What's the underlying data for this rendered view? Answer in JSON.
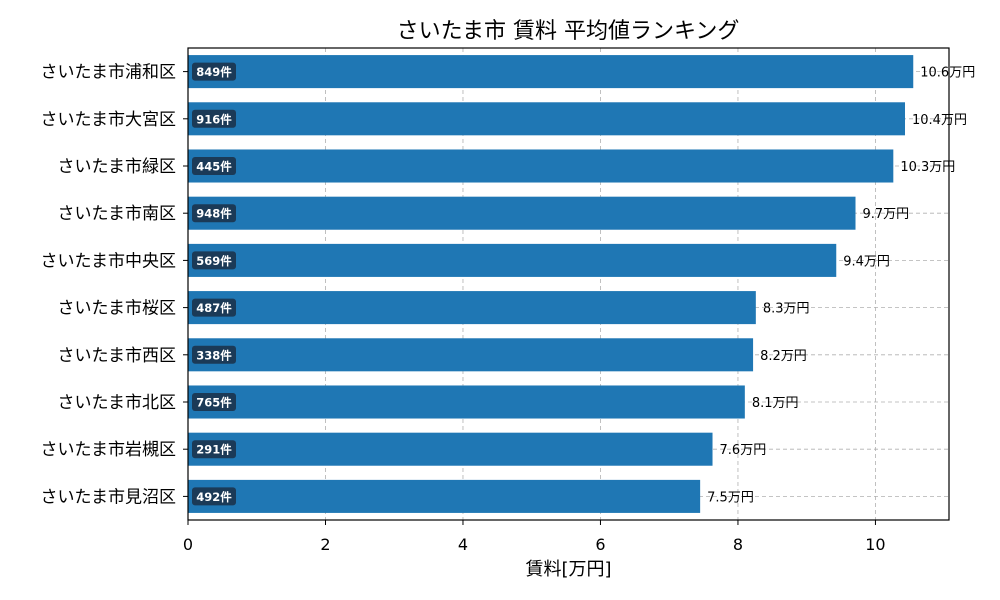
{
  "chart_data": {
    "type": "bar",
    "orientation": "horizontal",
    "title": "さいたま市 賃料 平均値ランキング",
    "xlabel": "賃料[万円]",
    "ylabel": "",
    "xlim": [
      0,
      11.07
    ],
    "xticks": [
      0,
      2,
      4,
      6,
      8,
      10
    ],
    "grid": true,
    "value_suffix": "万円",
    "count_suffix": "件",
    "categories": [
      "さいたま市浦和区",
      "さいたま市大宮区",
      "さいたま市緑区",
      "さいたま市南区",
      "さいたま市中央区",
      "さいたま市桜区",
      "さいたま市西区",
      "さいたま市北区",
      "さいたま市岩槻区",
      "さいたま市見沼区"
    ],
    "values": [
      10.6,
      10.4,
      10.3,
      9.7,
      9.4,
      8.3,
      8.2,
      8.1,
      7.6,
      7.5
    ],
    "bar_values": [
      10.55,
      10.43,
      10.26,
      9.71,
      9.43,
      8.26,
      8.22,
      8.1,
      7.63,
      7.45
    ],
    "counts": [
      849,
      916,
      445,
      948,
      569,
      487,
      338,
      765,
      291,
      492
    ],
    "colors": {
      "bar": "#1f77b4",
      "count_badge": "#1b3a57",
      "grid": "#b0b0b0"
    }
  }
}
